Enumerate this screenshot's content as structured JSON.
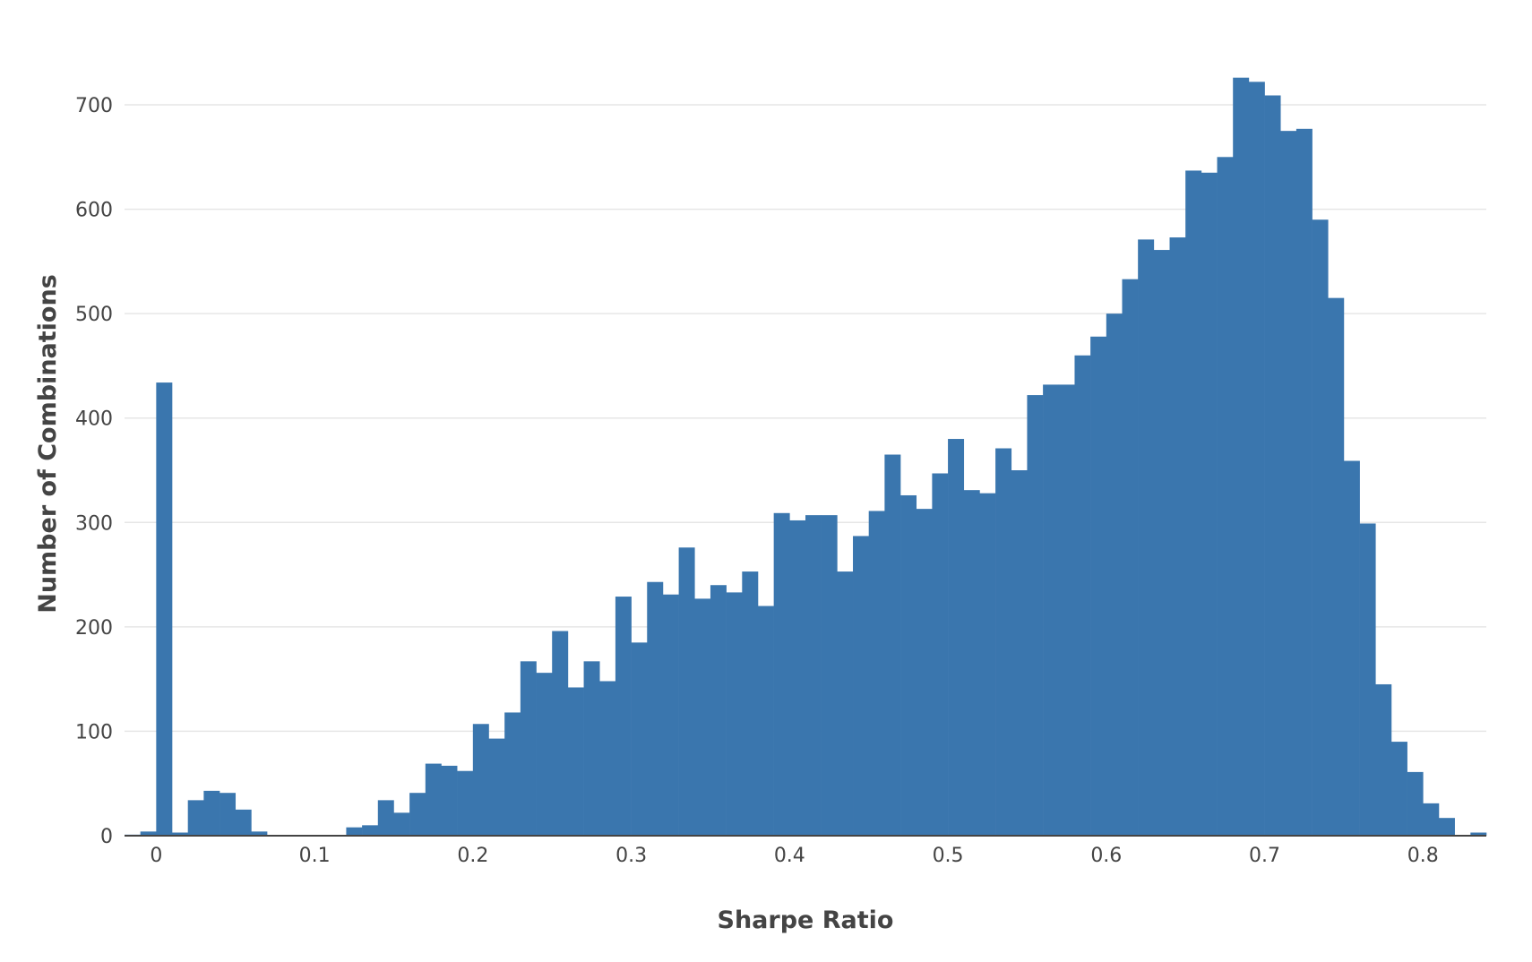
{
  "chart_data": {
    "type": "bar",
    "subtype": "histogram",
    "title": "",
    "xlabel": "Sharpe Ratio",
    "ylabel": "Number of Combinations",
    "bin_start": -0.02,
    "bin_width": 0.01,
    "xlim": [
      -0.02,
      0.84
    ],
    "ylim": [
      0,
      750
    ],
    "x_ticks": [
      {
        "value": 0,
        "label": "0"
      },
      {
        "value": 0.1,
        "label": "0.1"
      },
      {
        "value": 0.2,
        "label": "0.2"
      },
      {
        "value": 0.3,
        "label": "0.3"
      },
      {
        "value": 0.4,
        "label": "0.4"
      },
      {
        "value": 0.5,
        "label": "0.5"
      },
      {
        "value": 0.6,
        "label": "0.6"
      },
      {
        "value": 0.7,
        "label": "0.7"
      },
      {
        "value": 0.8,
        "label": "0.8"
      }
    ],
    "y_ticks": [
      {
        "value": 0,
        "label": "0"
      },
      {
        "value": 100,
        "label": "100"
      },
      {
        "value": 200,
        "label": "200"
      },
      {
        "value": 300,
        "label": "300"
      },
      {
        "value": 400,
        "label": "400"
      },
      {
        "value": 500,
        "label": "500"
      },
      {
        "value": 600,
        "label": "600"
      },
      {
        "value": 700,
        "label": "700"
      }
    ],
    "grid": true,
    "legend": false,
    "bar_color": "#3a76ae",
    "values": [
      1,
      4,
      434,
      3,
      34,
      43,
      41,
      25,
      4,
      0,
      0,
      0,
      0,
      0,
      8,
      10,
      34,
      22,
      41,
      69,
      67,
      62,
      107,
      93,
      118,
      167,
      156,
      196,
      142,
      167,
      148,
      229,
      185,
      243,
      231,
      276,
      227,
      240,
      233,
      253,
      220,
      309,
      302,
      307,
      307,
      253,
      287,
      311,
      365,
      326,
      313,
      347,
      380,
      331,
      328,
      371,
      350,
      422,
      432,
      432,
      460,
      478,
      500,
      533,
      571,
      561,
      573,
      637,
      635,
      650,
      726,
      722,
      709,
      675,
      677,
      590,
      515,
      359,
      299,
      145,
      90,
      61,
      31,
      17,
      0,
      3
    ]
  }
}
